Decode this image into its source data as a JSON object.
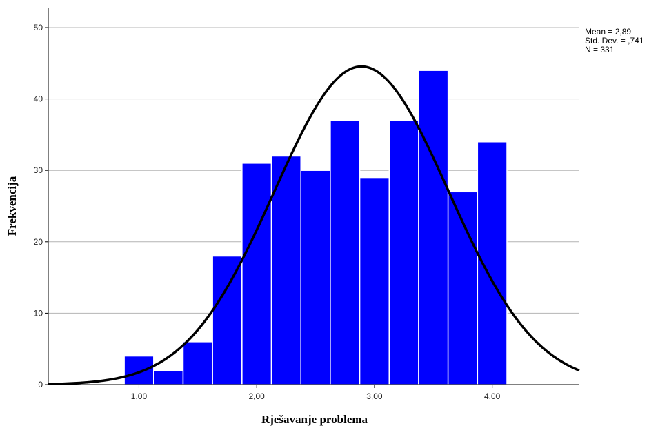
{
  "chart_data": {
    "type": "bar",
    "title": "",
    "xlabel": "Rješavanje problema",
    "ylabel": "Frekvencija",
    "x_ticks": [
      "1,00",
      "2,00",
      "3,00",
      "4,00"
    ],
    "x_tick_values": [
      1,
      2,
      3,
      4
    ],
    "y_ticks": [
      "0",
      "10",
      "20",
      "30",
      "40",
      "50"
    ],
    "y_tick_values": [
      0,
      10,
      20,
      30,
      40,
      50
    ],
    "xlim": [
      0.23,
      4.74
    ],
    "ylim": [
      0,
      50
    ],
    "grid": true,
    "bins": [
      {
        "start": 0.875,
        "end": 1.125,
        "count": 4
      },
      {
        "start": 1.125,
        "end": 1.375,
        "count": 2
      },
      {
        "start": 1.375,
        "end": 1.625,
        "count": 6
      },
      {
        "start": 1.625,
        "end": 1.875,
        "count": 18
      },
      {
        "start": 1.875,
        "end": 2.125,
        "count": 31
      },
      {
        "start": 2.125,
        "end": 2.375,
        "count": 32
      },
      {
        "start": 2.375,
        "end": 2.625,
        "count": 30
      },
      {
        "start": 2.625,
        "end": 2.875,
        "count": 37
      },
      {
        "start": 2.875,
        "end": 3.125,
        "count": 29
      },
      {
        "start": 3.125,
        "end": 3.375,
        "count": 37
      },
      {
        "start": 3.375,
        "end": 3.625,
        "count": 44
      },
      {
        "start": 3.625,
        "end": 3.875,
        "count": 27
      },
      {
        "start": 3.875,
        "end": 4.125,
        "count": 34
      }
    ],
    "normal_curve": {
      "mean": 2.89,
      "std_dev": 0.741,
      "n": 331,
      "bin_width": 0.25
    },
    "stats_text": [
      "Mean = 2,89",
      "Std. Dev. = ,741",
      "N = 331"
    ],
    "legend_position": "top-right"
  },
  "colors": {
    "bar_fill": "#0000ff",
    "bar_edge": "#ffffff",
    "curve": "#000000",
    "grid": "#b4b4b4",
    "axis": "#000000"
  }
}
